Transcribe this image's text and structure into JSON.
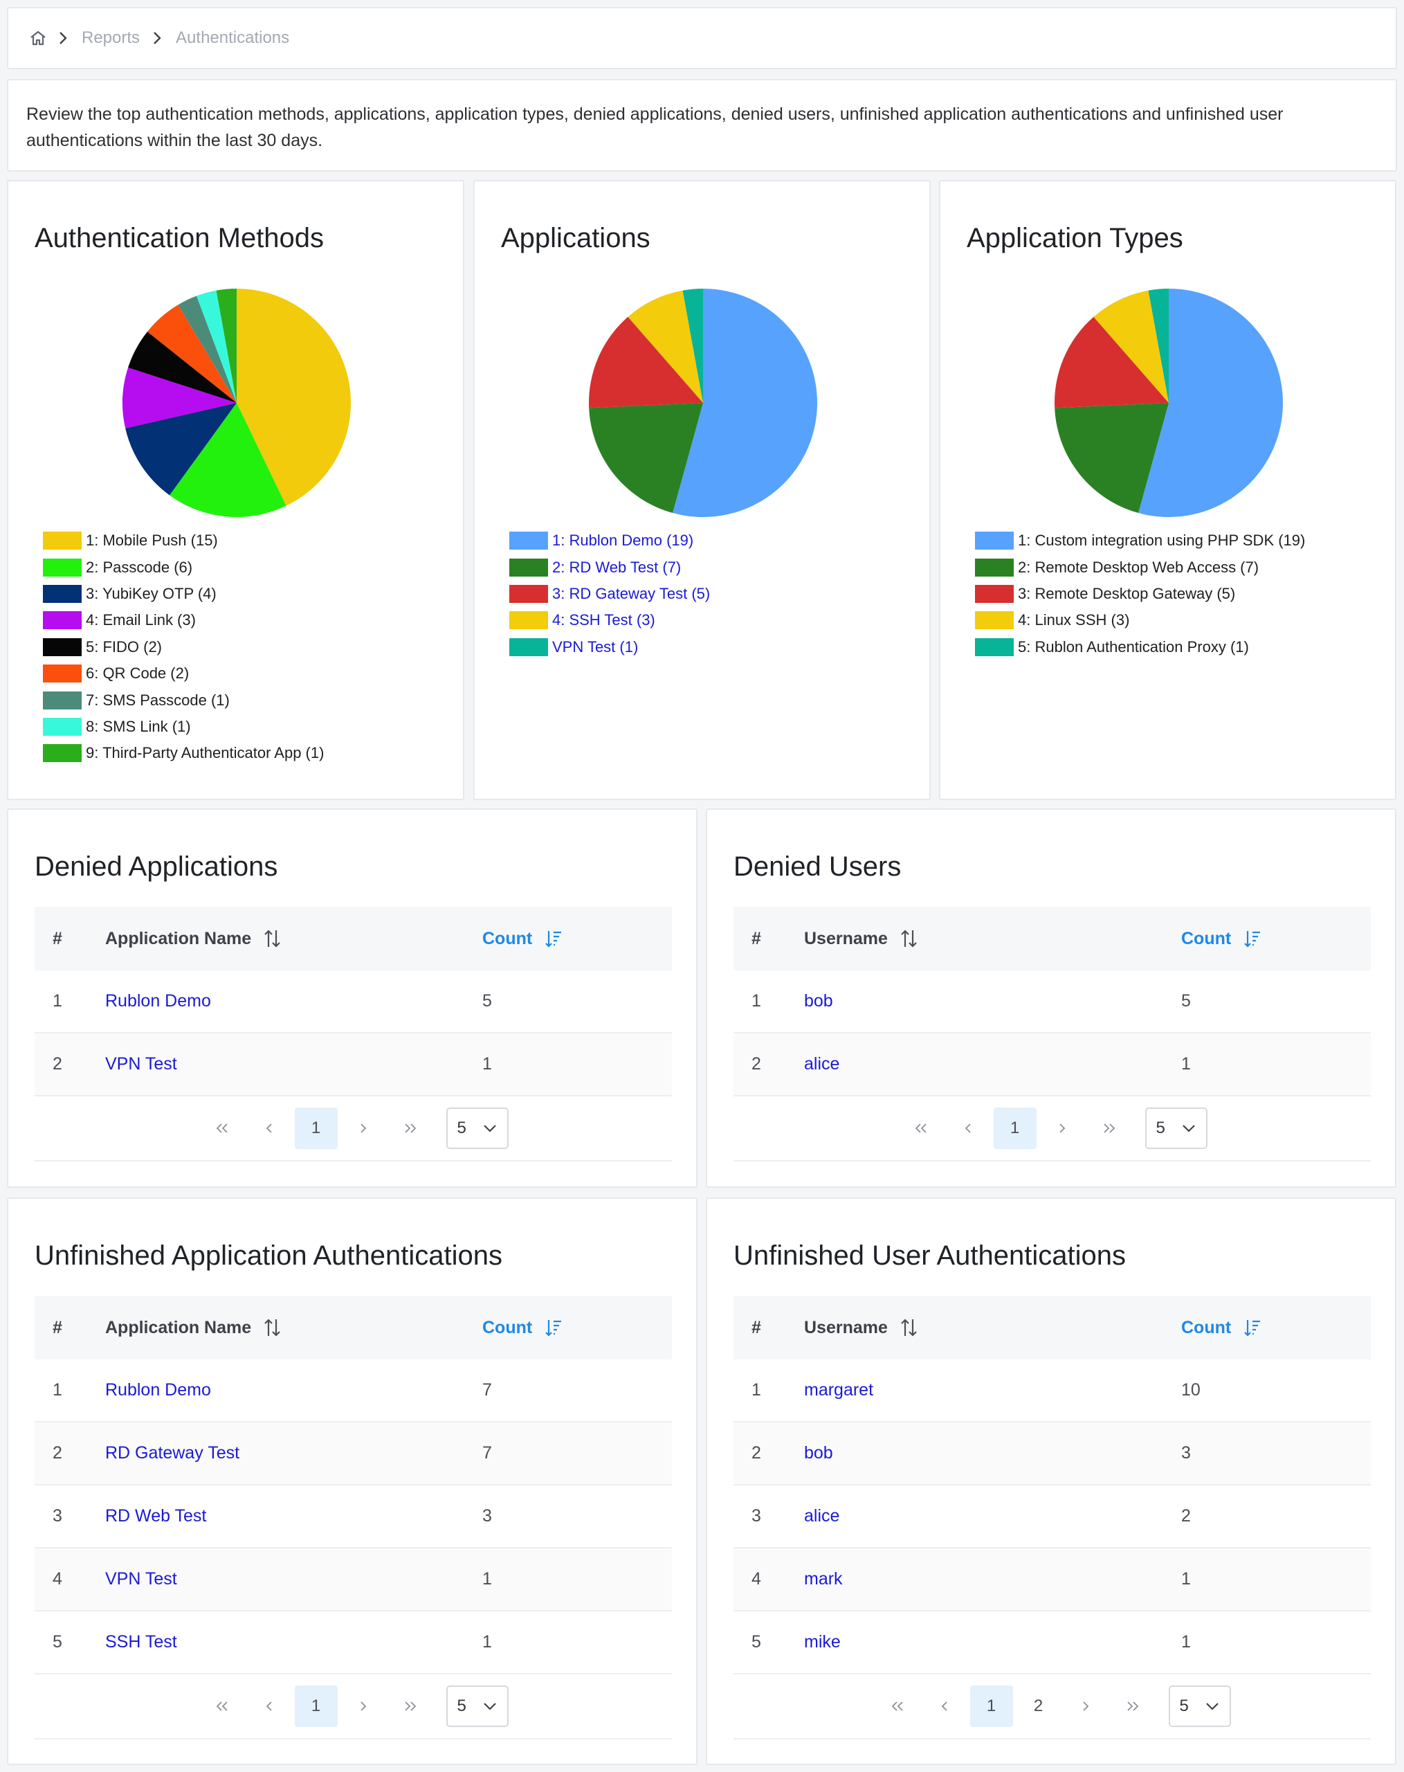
{
  "breadcrumb": {
    "home_icon": "home-icon",
    "items": [
      "Reports",
      "Authentications"
    ]
  },
  "description": "Review the top authentication methods, applications, application types, denied applications, denied users, unfinished application authentications and unfinished user authentications within the last 30 days.",
  "charts": {
    "auth_methods": {
      "title": "Authentication Methods",
      "legend": [
        {
          "label": "1: Mobile Push (15)",
          "color": "#f2cb0c"
        },
        {
          "label": "2: Passcode (6)",
          "color": "#22f10d"
        },
        {
          "label": "3: YubiKey OTP (4)",
          "color": "#033175"
        },
        {
          "label": "4: Email Link (3)",
          "color": "#b60cf0"
        },
        {
          "label": "5: FIDO (2)",
          "color": "#060606"
        },
        {
          "label": "6: QR Code (2)",
          "color": "#fa500b"
        },
        {
          "label": "7: SMS Passcode (1)",
          "color": "#4c8b79"
        },
        {
          "label": "8: SMS Link (1)",
          "color": "#38f8db"
        },
        {
          "label": "9: Third-Party Authenticator App (1)",
          "color": "#2aae1b"
        }
      ]
    },
    "applications": {
      "title": "Applications",
      "legend": [
        {
          "label": "1: Rublon Demo (19)",
          "color": "#57a2fd"
        },
        {
          "label": "2: RD Web Test (7)",
          "color": "#2a8124"
        },
        {
          "label": "3: RD Gateway Test (5)",
          "color": "#d72f2f"
        },
        {
          "label": "4: SSH Test (3)",
          "color": "#f3cc0c"
        },
        {
          "label": "VPN Test (1)",
          "color": "#08b497"
        }
      ]
    },
    "app_types": {
      "title": "Application Types",
      "legend": [
        {
          "label": "1: Custom integration using PHP SDK (19)",
          "color": "#57a2fd"
        },
        {
          "label": "2: Remote Desktop Web Access (7)",
          "color": "#2a8124"
        },
        {
          "label": "3: Remote Desktop Gateway (5)",
          "color": "#d72f2f"
        },
        {
          "label": "4: Linux SSH (3)",
          "color": "#f3cc0c"
        },
        {
          "label": "5: Rublon Authentication Proxy (1)",
          "color": "#08b497"
        }
      ]
    }
  },
  "chart_data": [
    {
      "type": "pie",
      "title": "Authentication Methods",
      "categories": [
        "Mobile Push",
        "Passcode",
        "YubiKey OTP",
        "Email Link",
        "FIDO",
        "QR Code",
        "SMS Passcode",
        "SMS Link",
        "Third-Party Authenticator App"
      ],
      "values": [
        15,
        6,
        4,
        3,
        2,
        2,
        1,
        1,
        1
      ]
    },
    {
      "type": "pie",
      "title": "Applications",
      "categories": [
        "Rublon Demo",
        "RD Web Test",
        "RD Gateway Test",
        "SSH Test",
        "VPN Test"
      ],
      "values": [
        19,
        7,
        5,
        3,
        1
      ]
    },
    {
      "type": "pie",
      "title": "Application Types",
      "categories": [
        "Custom integration using PHP SDK",
        "Remote Desktop Web Access",
        "Remote Desktop Gateway",
        "Linux SSH",
        "Rublon Authentication Proxy"
      ],
      "values": [
        19,
        7,
        5,
        3,
        1
      ]
    }
  ],
  "tables": {
    "denied_apps": {
      "title": "Denied Applications",
      "headers": {
        "num": "#",
        "name": "Application Name",
        "count": "Count"
      },
      "rows": [
        {
          "num": "1",
          "name": "Rublon Demo",
          "count": "5"
        },
        {
          "num": "2",
          "name": "VPN Test",
          "count": "1"
        }
      ],
      "pager": {
        "pages": [
          "1"
        ],
        "active": "1",
        "rows_per_page": "5"
      }
    },
    "denied_users": {
      "title": "Denied Users",
      "headers": {
        "num": "#",
        "name": "Username",
        "count": "Count"
      },
      "rows": [
        {
          "num": "1",
          "name": "bob",
          "count": "5"
        },
        {
          "num": "2",
          "name": "alice",
          "count": "1"
        }
      ],
      "pager": {
        "pages": [
          "1"
        ],
        "active": "1",
        "rows_per_page": "5"
      }
    },
    "unf_apps": {
      "title": "Unfinished Application Authentications",
      "headers": {
        "num": "#",
        "name": "Application Name",
        "count": "Count"
      },
      "rows": [
        {
          "num": "1",
          "name": "Rublon Demo",
          "count": "7"
        },
        {
          "num": "2",
          "name": "RD Gateway Test",
          "count": "7"
        },
        {
          "num": "3",
          "name": "RD Web Test",
          "count": "3"
        },
        {
          "num": "4",
          "name": "VPN Test",
          "count": "1"
        },
        {
          "num": "5",
          "name": "SSH Test",
          "count": "1"
        }
      ],
      "pager": {
        "pages": [
          "1"
        ],
        "active": "1",
        "rows_per_page": "5"
      }
    },
    "unf_users": {
      "title": "Unfinished User Authentications",
      "headers": {
        "num": "#",
        "name": "Username",
        "count": "Count"
      },
      "rows": [
        {
          "num": "1",
          "name": "margaret",
          "count": "10"
        },
        {
          "num": "2",
          "name": "bob",
          "count": "3"
        },
        {
          "num": "3",
          "name": "alice",
          "count": "2"
        },
        {
          "num": "4",
          "name": "mark",
          "count": "1"
        },
        {
          "num": "5",
          "name": "mike",
          "count": "1"
        }
      ],
      "pager": {
        "pages": [
          "1",
          "2"
        ],
        "active": "1",
        "rows_per_page": "5"
      }
    }
  }
}
